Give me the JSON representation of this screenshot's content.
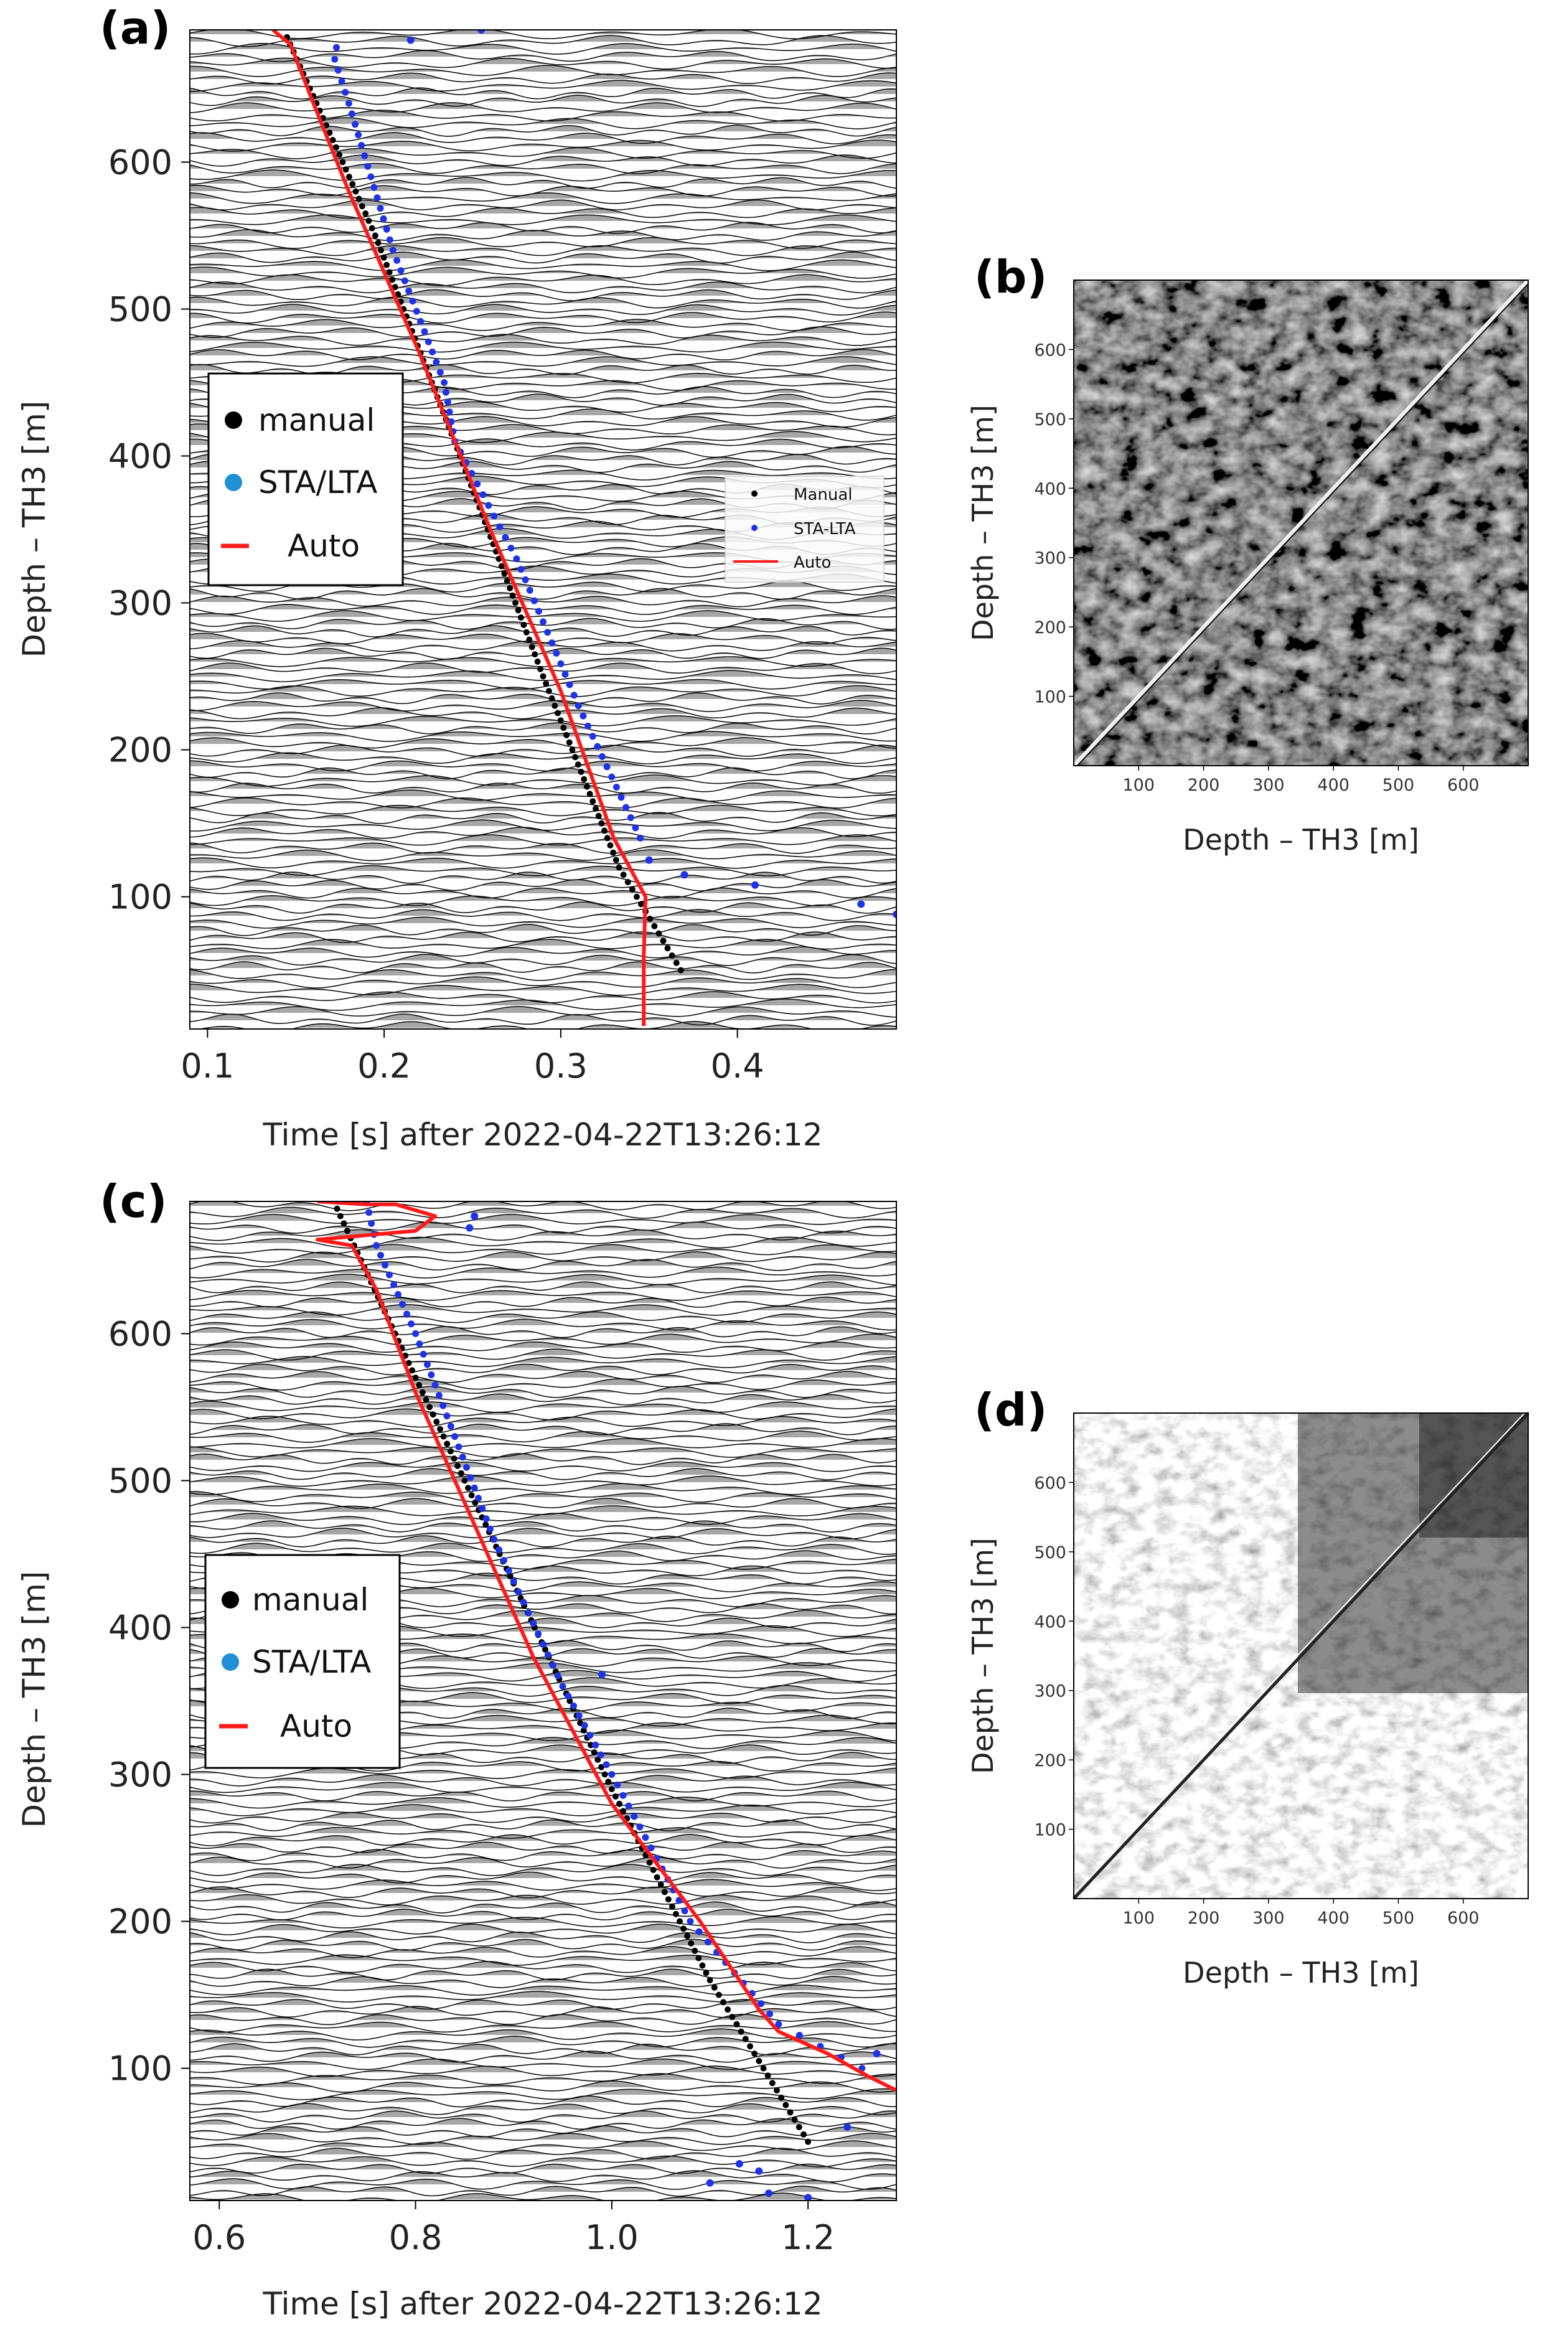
{
  "figure": {
    "panels": {
      "a": {
        "label": "(a)"
      },
      "b": {
        "label": "(b)"
      },
      "c": {
        "label": "(c)"
      },
      "d": {
        "label": "(d)"
      }
    }
  },
  "colors": {
    "manual": "#000000",
    "sta_lta": "#1f33e6",
    "auto": "#ff1a1a",
    "legend_sta_lta_marker": "#1f8fd6"
  },
  "chart_data": [
    {
      "id": "a",
      "type": "scatter",
      "title": "",
      "xlabel": "Time [s] after 2022-04-22T13:26:12",
      "ylabel": "Depth – TH3 [m]",
      "xlim": [
        0.09,
        0.49
      ],
      "ylim": [
        690,
        10
      ],
      "xticks": [
        0.1,
        0.2,
        0.3,
        0.4
      ],
      "xticklabels": [
        "0.1",
        "0.2",
        "0.3",
        "0.4"
      ],
      "yticks": [
        100,
        200,
        300,
        400,
        500,
        600
      ],
      "yticklabels": [
        "100",
        "200",
        "300",
        "400",
        "500",
        "600"
      ],
      "background": "seismic wiggle traces (one per depth channel)",
      "legend_main": {
        "entries": [
          "manual",
          "STA/LTA",
          "Auto"
        ]
      },
      "legend_secondary": {
        "entries": [
          "Manual",
          "STA-LTA",
          "Auto"
        ]
      },
      "series": [
        {
          "name": "manual",
          "style": "points",
          "x": [
            0.368,
            0.333,
            0.29,
            0.243,
            0.195,
            0.145
          ],
          "y": [
            50,
            120,
            250,
            400,
            550,
            685
          ]
        },
        {
          "name": "STA/LTA",
          "style": "points",
          "x": [
            0.345,
            0.31,
            0.275,
            0.24,
            0.234,
            0.205,
            0.18,
            0.172,
            0.173
          ],
          "y": [
            140,
            230,
            330,
            410,
            450,
            540,
            640,
            670,
            678
          ]
        },
        {
          "name": "STA/LTA outliers",
          "style": "points",
          "x": [
            0.35,
            0.37,
            0.41,
            0.47,
            0.49,
            0.215,
            0.255
          ],
          "y": [
            125,
            115,
            108,
            95,
            88,
            683,
            690
          ]
        },
        {
          "name": "Auto",
          "style": "line",
          "x": [
            0.347,
            0.347,
            0.348,
            0.33,
            0.3,
            0.26,
            0.22,
            0.18,
            0.16,
            0.147,
            0.137
          ],
          "y": [
            12,
            60,
            100,
            140,
            240,
            350,
            470,
            580,
            640,
            680,
            690
          ]
        }
      ]
    },
    {
      "id": "b",
      "type": "heatmap",
      "title": "",
      "xlabel": "Depth – TH3 [m]",
      "ylabel": "Depth – TH3 [m]",
      "xlim": [
        0,
        700
      ],
      "ylim": [
        0,
        700
      ],
      "xticks": [
        100,
        200,
        300,
        400,
        500,
        600
      ],
      "xticklabels": [
        "100",
        "200",
        "300",
        "400",
        "500",
        "600"
      ],
      "yticks": [
        100,
        200,
        300,
        400,
        500,
        600
      ],
      "yticklabels": [
        "100",
        "200",
        "300",
        "400",
        "500",
        "600"
      ],
      "description": "channel-by-channel similarity matrix, mostly dark, diagonal line"
    },
    {
      "id": "c",
      "type": "scatter",
      "title": "",
      "xlabel": "Time [s] after 2022-04-22T13:26:12",
      "ylabel": "Depth – TH3 [m]",
      "xlim": [
        0.57,
        1.29
      ],
      "ylim": [
        690,
        10
      ],
      "xticks": [
        0.6,
        0.8,
        1.0,
        1.2
      ],
      "xticklabels": [
        "0.6",
        "0.8",
        "1.0",
        "1.2"
      ],
      "yticks": [
        100,
        200,
        300,
        400,
        500,
        600
      ],
      "yticklabels": [
        "100",
        "200",
        "300",
        "400",
        "500",
        "600"
      ],
      "background": "seismic wiggle traces (one per depth channel)",
      "legend_main": {
        "entries": [
          "manual",
          "STA/LTA",
          "Auto"
        ]
      },
      "series": [
        {
          "name": "manual",
          "style": "points",
          "x": [
            1.2,
            1.1,
            1.0,
            0.9,
            0.8,
            0.72
          ],
          "y": [
            50,
            160,
            290,
            430,
            570,
            685
          ]
        },
        {
          "name": "STA/LTA",
          "style": "points",
          "x": [
            1.255,
            1.17,
            1.08,
            1.0,
            0.95,
            0.88,
            0.84,
            0.8,
            0.76,
            0.75
          ],
          "y": [
            100,
            130,
            200,
            300,
            360,
            460,
            530,
            600,
            660,
            690
          ]
        },
        {
          "name": "STA/LTA outliers",
          "style": "points",
          "x": [
            1.1,
            1.13,
            1.15,
            1.16,
            1.2,
            1.24,
            1.27,
            0.99,
            0.855,
            0.86
          ],
          "y": [
            22,
            35,
            30,
            15,
            12,
            60,
            110,
            368,
            672,
            680
          ]
        },
        {
          "name": "Auto",
          "style": "line",
          "x": [
            1.29,
            1.26,
            1.22,
            1.17,
            1.15,
            1.09,
            1.0,
            0.92,
            0.86,
            0.8,
            0.76,
            0.735,
            0.7,
            0.8,
            0.82,
            0.78,
            0.75,
            0.7
          ],
          "y": [
            85,
            95,
            110,
            125,
            140,
            200,
            280,
            380,
            470,
            560,
            630,
            660,
            664,
            670,
            680,
            688,
            688,
            690
          ]
        }
      ]
    },
    {
      "id": "d",
      "type": "heatmap",
      "title": "",
      "xlabel": "Depth – TH3 [m]",
      "ylabel": "Depth – TH3 [m]",
      "xlim": [
        0,
        700
      ],
      "ylim": [
        0,
        700
      ],
      "xticks": [
        100,
        200,
        300,
        400,
        500,
        600
      ],
      "xticklabels": [
        "100",
        "200",
        "300",
        "400",
        "500",
        "600"
      ],
      "yticks": [
        100,
        200,
        300,
        400,
        500,
        600
      ],
      "yticklabels": [
        "100",
        "200",
        "300",
        "400",
        "500",
        "600"
      ],
      "description": "channel-by-channel similarity matrix, light lower-left, dark upper-right block, diagonal line"
    }
  ]
}
